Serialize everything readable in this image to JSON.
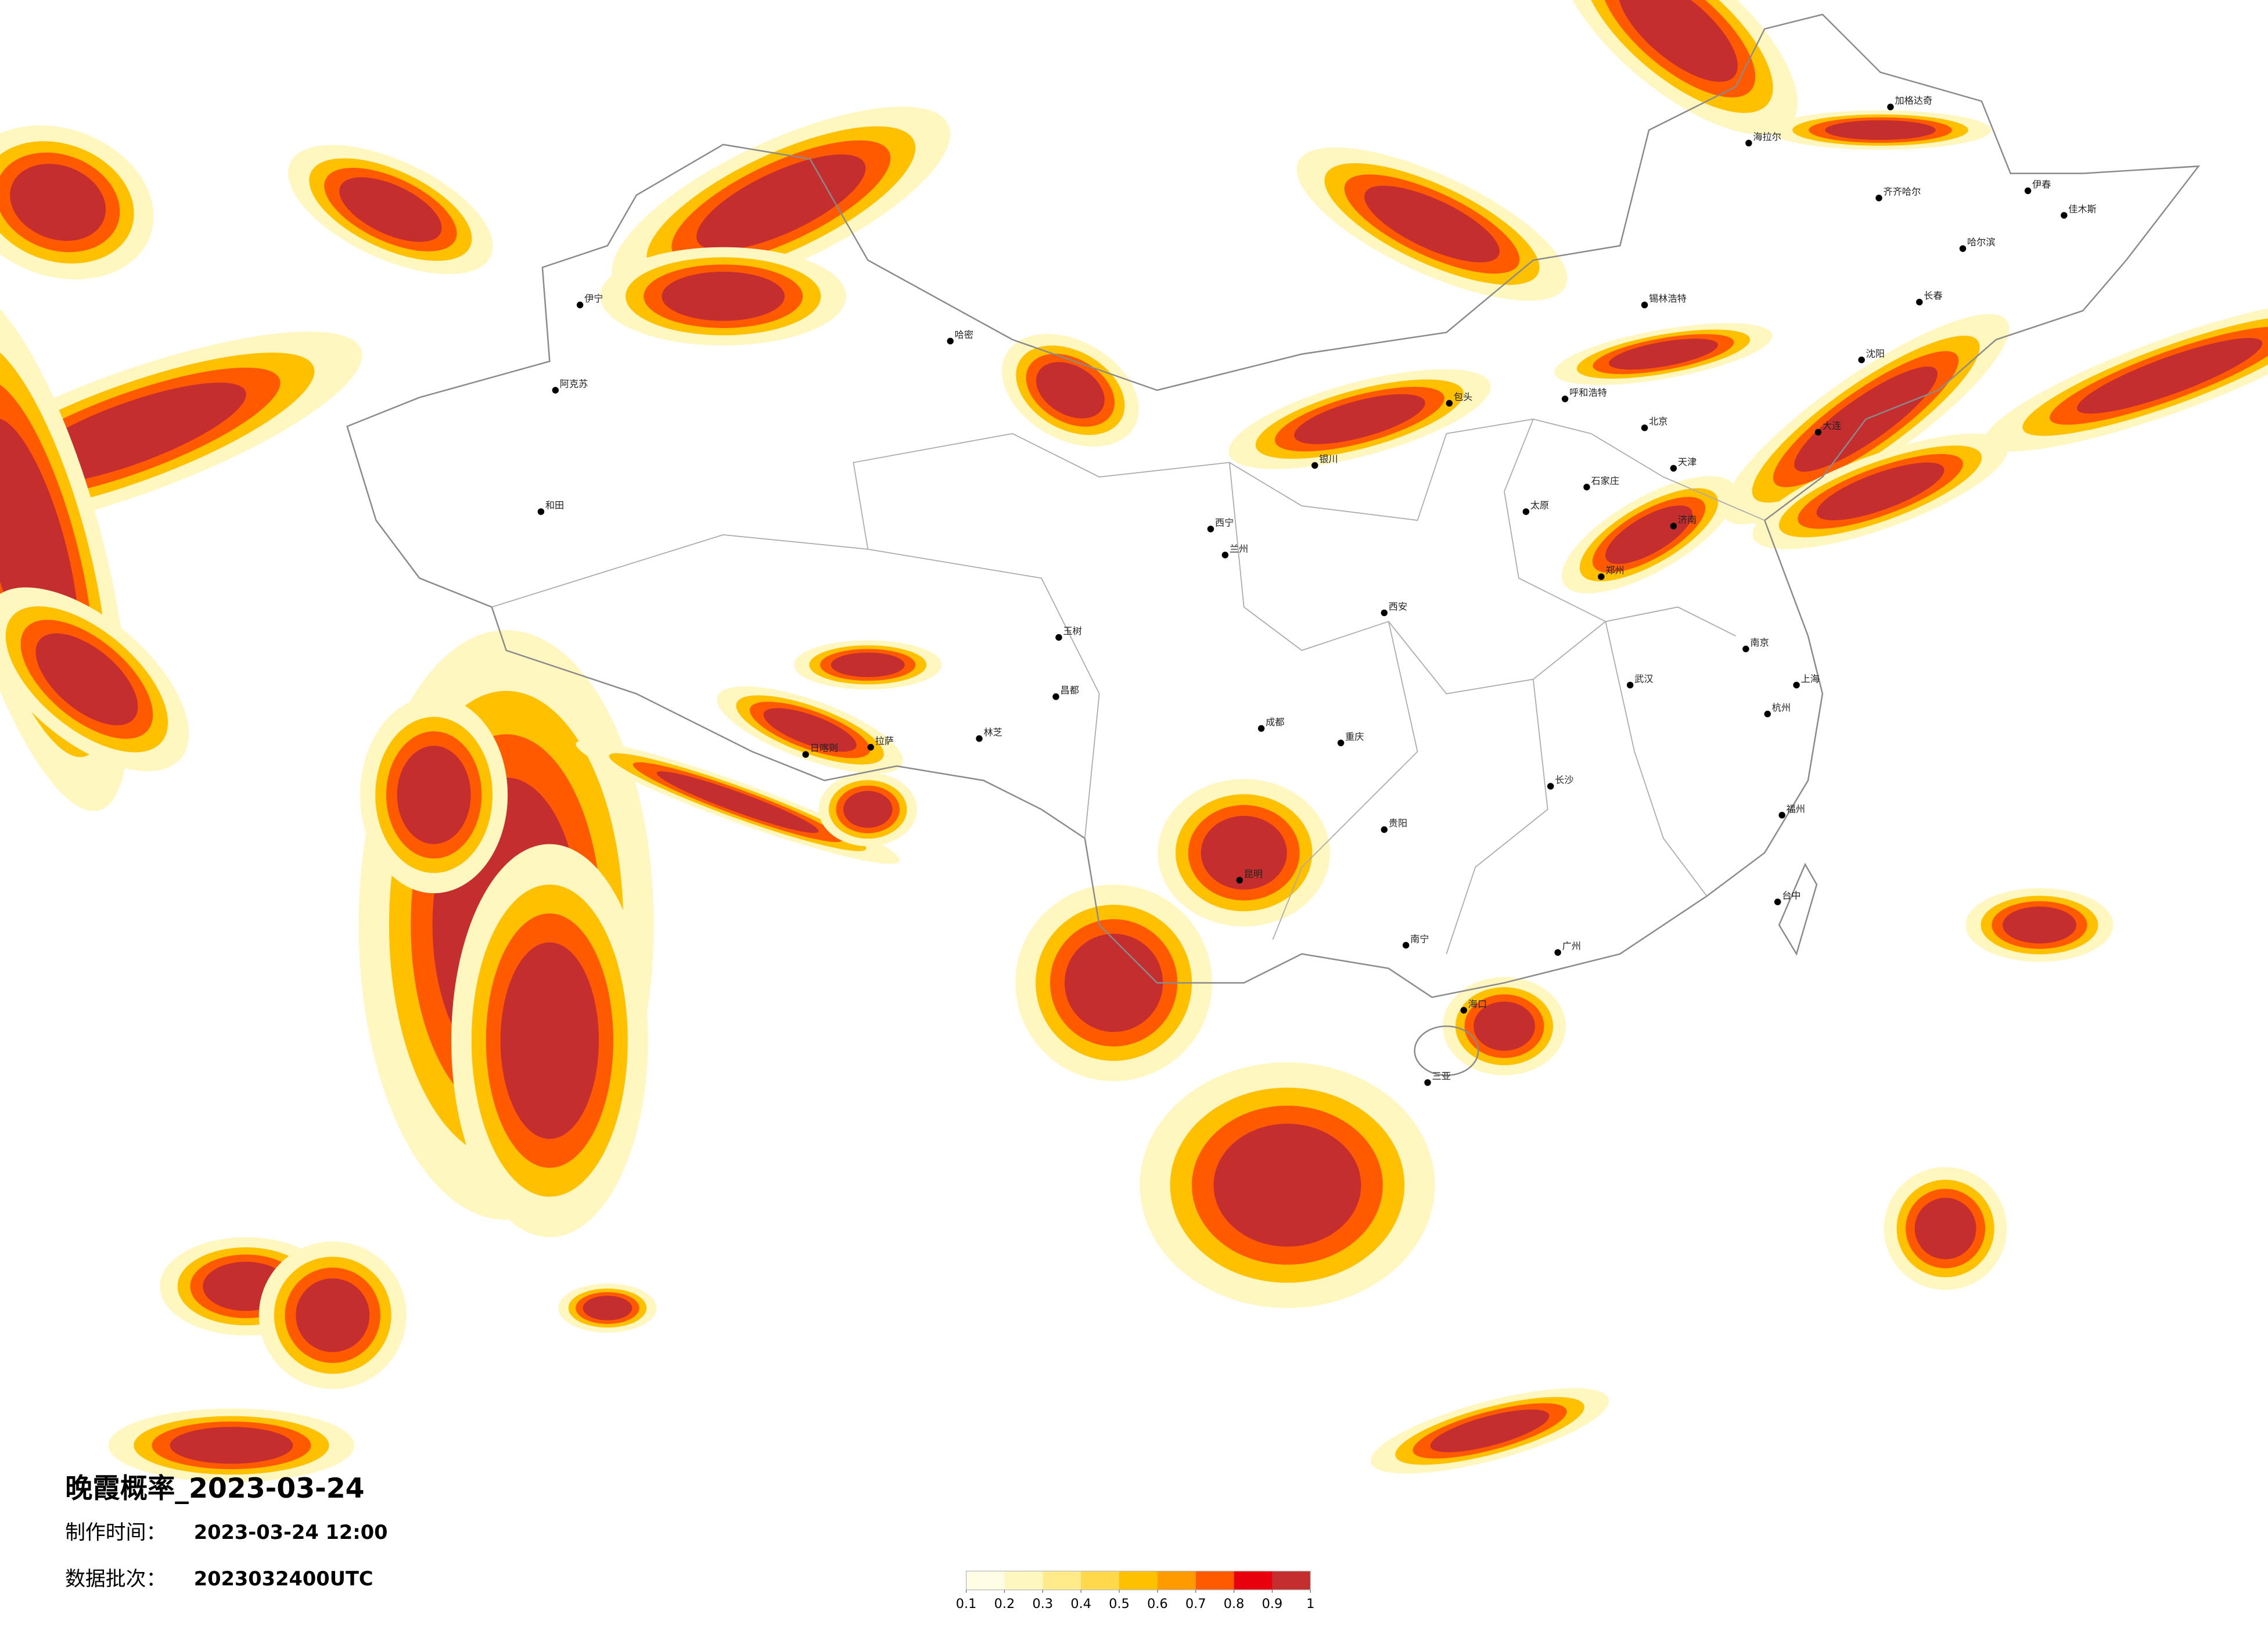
{
  "title": "晚霞概率_2023-03-24",
  "info": [
    {
      "label": "制作时间：",
      "value": "2023-03-24 12:00"
    },
    {
      "label": "数据批次：",
      "value": "2023032400UTC"
    }
  ],
  "legend": {
    "ticks": [
      0.1,
      0.2,
      0.3,
      0.4,
      0.5,
      0.6,
      0.7,
      0.8,
      0.9,
      1
    ],
    "colors": [
      "#fffde6",
      "#fff6c0",
      "#ffeb8a",
      "#ffd84c",
      "#ffc000",
      "#ff9a00",
      "#ff5a00",
      "#e8000c",
      "#c42e2e"
    ]
  },
  "map": {
    "cities": [
      "伊宁",
      "阿克苏",
      "和田",
      "哈密",
      "日喀则",
      "拉萨",
      "林芝",
      "昌都",
      "玉树",
      "西宁",
      "兰州",
      "银川",
      "呼和浩特",
      "包头",
      "北京",
      "天津",
      "石家庄",
      "太原",
      "西安",
      "郑州",
      "济南",
      "南京",
      "上海",
      "杭州",
      "武汉",
      "长沙",
      "成都",
      "重庆",
      "贵阳",
      "昆明",
      "南宁",
      "广州",
      "福州",
      "台中",
      "海口",
      "三亚",
      "哈尔滨",
      "长春",
      "沈阳",
      "大连",
      "齐齐哈尔",
      "锡林浩特",
      "加格达奇",
      "海拉尔",
      "伊春",
      "佳木斯"
    ]
  }
}
